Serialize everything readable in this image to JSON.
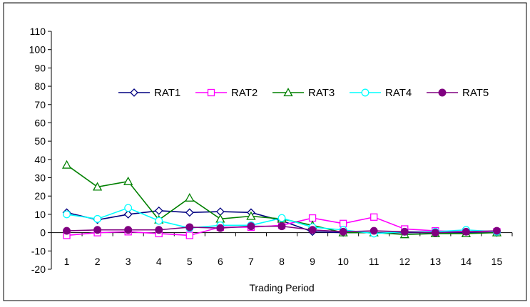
{
  "chart_data": {
    "type": "line",
    "title": "",
    "xlabel": "Trading Period",
    "ylabel": "",
    "ylim": [
      -20,
      110
    ],
    "yticks": [
      -20,
      -10,
      0,
      10,
      20,
      30,
      40,
      50,
      60,
      70,
      80,
      90,
      100,
      110
    ],
    "x": [
      1,
      2,
      3,
      4,
      5,
      6,
      7,
      8,
      9,
      10,
      11,
      12,
      13,
      14,
      15
    ],
    "grid": false,
    "legend_position": "top-center",
    "series": [
      {
        "name": "RAT1",
        "color": "#000080",
        "marker": "diamond",
        "values": [
          11,
          7,
          10,
          12,
          11,
          11.5,
          11,
          6.5,
          0.5,
          0,
          0,
          0,
          0,
          0,
          0
        ]
      },
      {
        "name": "RAT2",
        "color": "#ff00ff",
        "marker": "square",
        "values": [
          -1.5,
          0,
          0.5,
          -0.5,
          -1.5,
          3,
          3,
          4,
          8,
          5,
          8.5,
          2,
          1,
          0.5,
          0.5
        ]
      },
      {
        "name": "RAT3",
        "color": "#008000",
        "marker": "triangle",
        "values": [
          37,
          25,
          28,
          7,
          19,
          7.5,
          9,
          7.5,
          4,
          0,
          0,
          -1,
          -0.5,
          -0.5,
          0
        ]
      },
      {
        "name": "RAT4",
        "color": "#00ffff",
        "marker": "circle-open",
        "values": [
          10,
          7.5,
          13.5,
          6.5,
          2.5,
          4,
          4,
          8,
          3,
          1.5,
          -0.5,
          0.5,
          0.5,
          1.5,
          0.5
        ]
      },
      {
        "name": "RAT5",
        "color": "#800080",
        "marker": "circle-filled",
        "values": [
          1,
          1.5,
          1.5,
          1.5,
          3,
          2.5,
          3.5,
          3.5,
          1.5,
          0.5,
          1,
          0.5,
          0,
          0.5,
          1
        ]
      }
    ]
  }
}
